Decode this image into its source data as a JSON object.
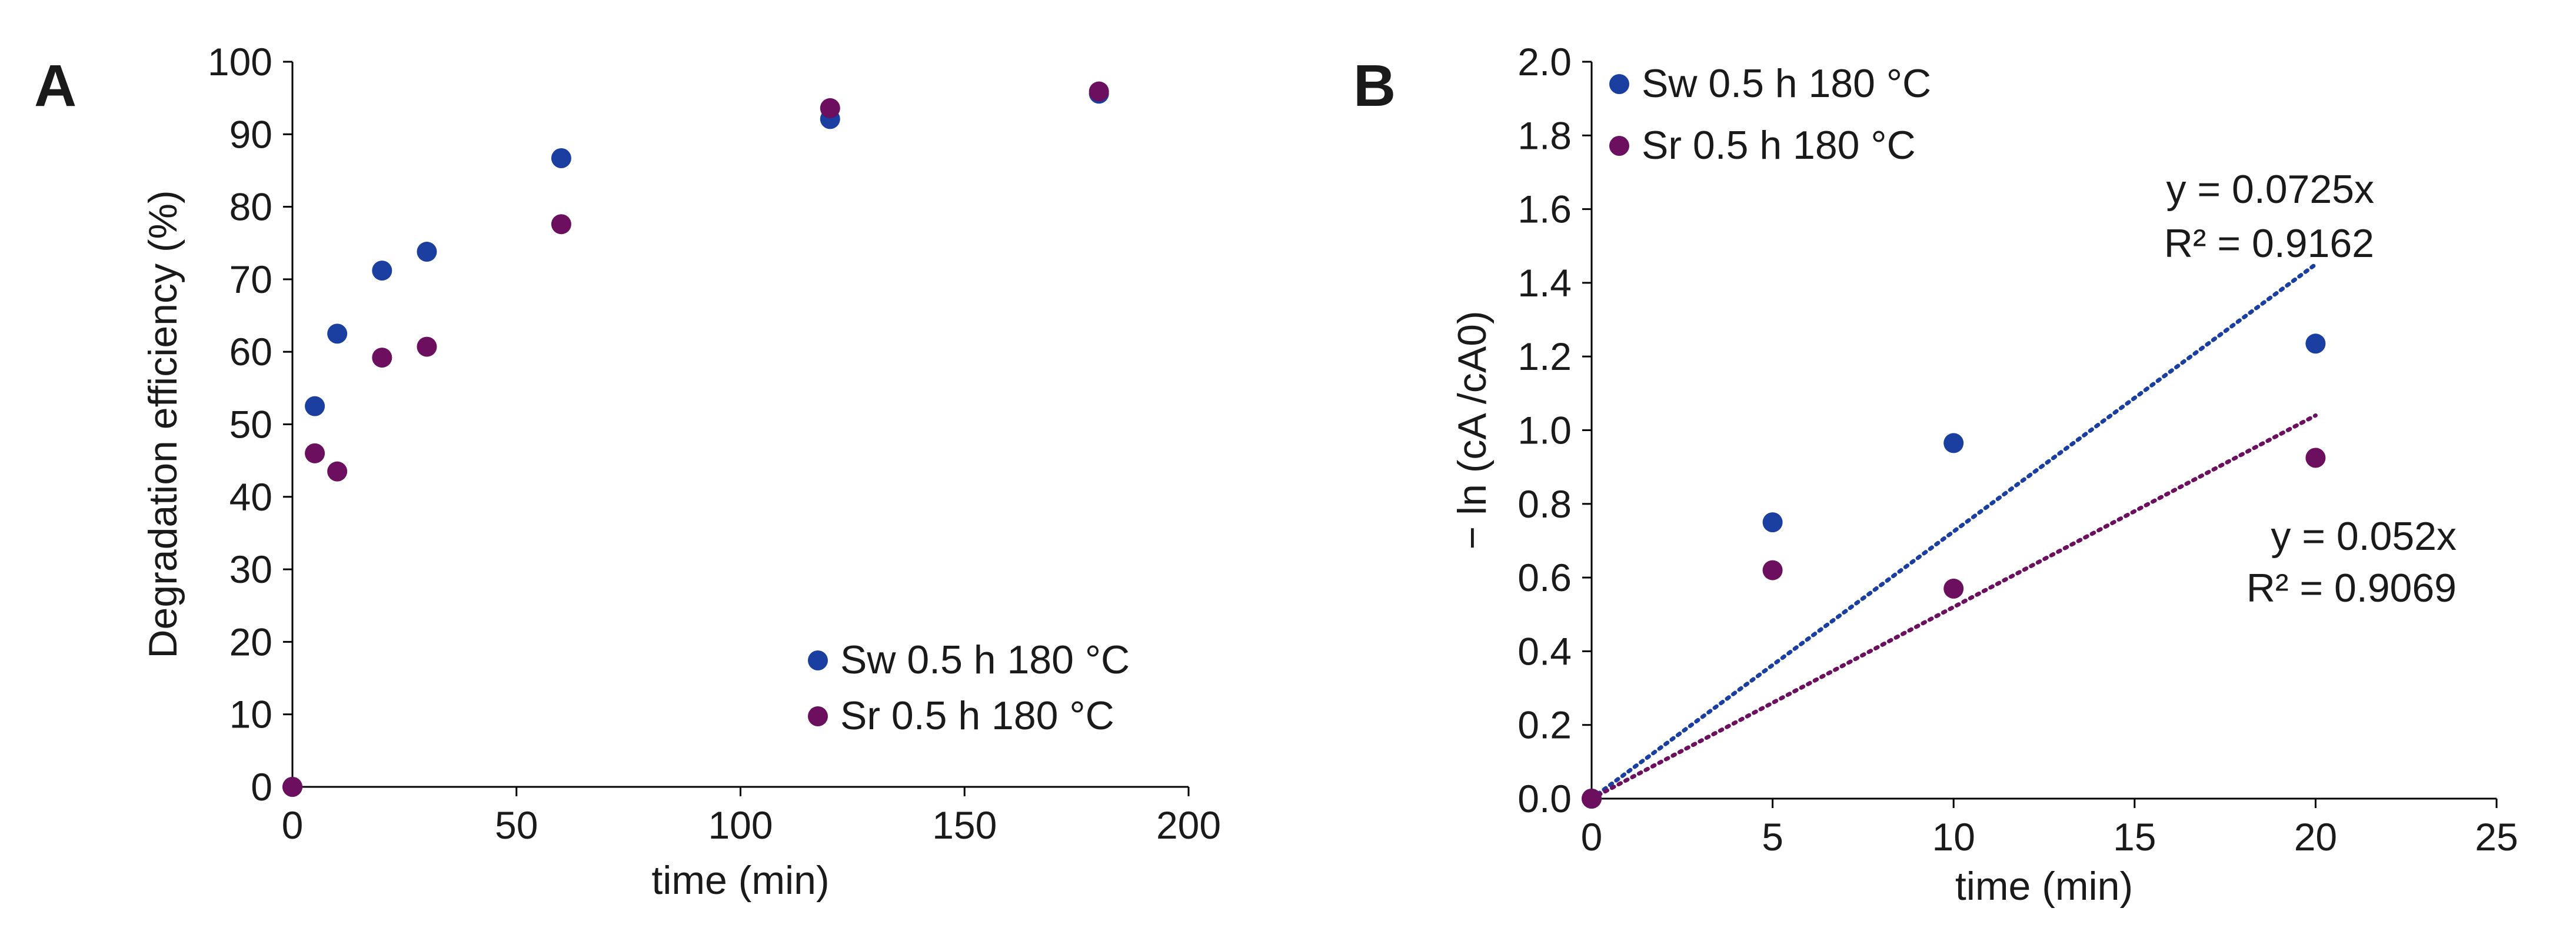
{
  "colors": {
    "sw": "#1a3fa0",
    "sr": "#6b0f5e"
  },
  "chart_data": [
    {
      "panel": "A",
      "type": "scatter",
      "xlabel": "time (min)",
      "ylabel": "Degradation efficiency (%)",
      "xlim": [
        0,
        200
      ],
      "ylim": [
        0,
        100
      ],
      "xticks": [
        0,
        50,
        100,
        150,
        200
      ],
      "yticks": [
        0,
        10,
        20,
        30,
        40,
        50,
        60,
        70,
        80,
        90,
        100
      ],
      "legend_position": "bottom-right",
      "series": [
        {
          "name": "Sw 0.5 h 180 °C",
          "color_key": "sw",
          "x": [
            0,
            5,
            10,
            20,
            30,
            60,
            120,
            180
          ],
          "y": [
            0,
            52.5,
            62.5,
            71.2,
            73.8,
            86.7,
            92.1,
            95.6
          ]
        },
        {
          "name": "Sr 0.5 h 180 °C",
          "color_key": "sr",
          "x": [
            0,
            5,
            10,
            20,
            30,
            60,
            120,
            180
          ],
          "y": [
            0,
            46.0,
            43.5,
            59.2,
            60.7,
            77.6,
            93.6,
            95.9
          ]
        }
      ],
      "trendlines": []
    },
    {
      "panel": "B",
      "type": "scatter",
      "xlabel": "time (min)",
      "ylabel": "− ln (cA /cA0)",
      "xlim": [
        0,
        25
      ],
      "ylim": [
        0,
        2.0
      ],
      "xticks": [
        0,
        5,
        10,
        15,
        20,
        25
      ],
      "yticks": [
        0.0,
        0.2,
        0.4,
        0.6,
        0.8,
        1.0,
        1.2,
        1.4,
        1.6,
        1.8,
        2.0
      ],
      "ytick_decimals": 1,
      "legend_position": "top-left",
      "series": [
        {
          "name": "Sw 0.5 h 180 °C",
          "color_key": "sw",
          "x": [
            0,
            5,
            10,
            20
          ],
          "y": [
            0.0,
            0.75,
            0.965,
            1.235
          ]
        },
        {
          "name": "Sr 0.5 h 180 °C",
          "color_key": "sr",
          "x": [
            0,
            5,
            10,
            20
          ],
          "y": [
            0.0,
            0.62,
            0.57,
            0.925
          ]
        }
      ],
      "trendlines": [
        {
          "series": "Sw 0.5 h 180 °C",
          "color_key": "sw",
          "slope": 0.0725,
          "x_range": [
            0,
            20
          ],
          "equation": "y = 0.0725x",
          "r2": "R² = 0.9162",
          "label_anchor": "end"
        },
        {
          "series": "Sr 0.5 h 180 °C",
          "color_key": "sr",
          "slope": 0.052,
          "x_range": [
            0,
            20
          ],
          "equation": "y = 0.052x",
          "r2": "R² = 0.9069",
          "label_anchor": "end"
        }
      ]
    }
  ]
}
